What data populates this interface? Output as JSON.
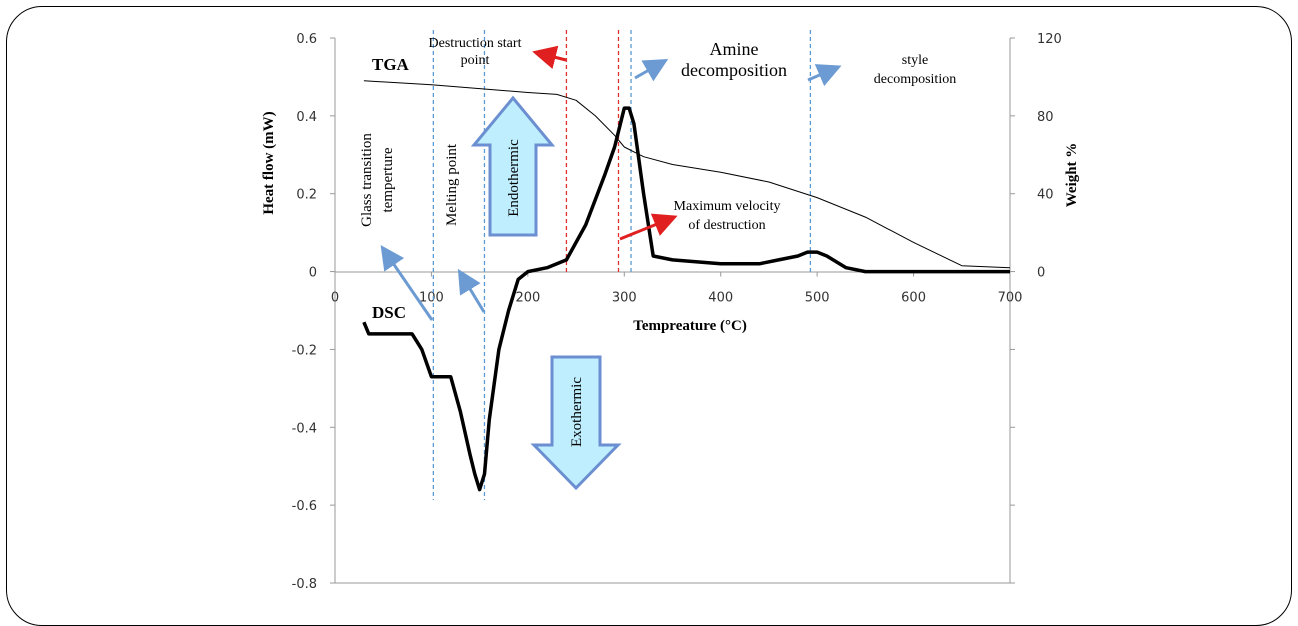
{
  "chart_data": {
    "type": "line",
    "x_ticks": [
      "0",
      "100",
      "200",
      "300",
      "400",
      "500",
      "600",
      "700"
    ],
    "xlim": [
      0,
      700
    ],
    "ylim_left": [
      -0.8,
      0.6
    ],
    "ylim_right": [
      0,
      120
    ],
    "y_ticks_left": [
      "0.6",
      "0.4",
      "0.2",
      "0",
      "-0.2",
      "-0.4",
      "-0.6",
      "-0.8"
    ],
    "y_ticks_right": [
      "120",
      "80",
      "40",
      "0"
    ],
    "xlabel": "Tempreature  (°C)",
    "ylabel_left": "Heat flow  (mW)",
    "ylabel_right": "Weight %",
    "grid": false,
    "series": [
      {
        "name": "TGA",
        "axis": "right",
        "x": [
          30,
          100,
          150,
          200,
          230,
          250,
          270,
          290,
          300,
          320,
          350,
          400,
          450,
          500,
          550,
          600,
          650,
          700
        ],
        "y": [
          98,
          96,
          94,
          92,
          91,
          88,
          80,
          70,
          64,
          59,
          55,
          51,
          46,
          38,
          28,
          15,
          3,
          2
        ]
      },
      {
        "name": "DSC",
        "axis": "left",
        "x": [
          30,
          35,
          60,
          80,
          90,
          100,
          110,
          120,
          130,
          140,
          145,
          150,
          155,
          160,
          170,
          180,
          190,
          200,
          220,
          240,
          260,
          280,
          290,
          300,
          305,
          310,
          320,
          330,
          350,
          400,
          440,
          460,
          480,
          490,
          500,
          510,
          530,
          550,
          600,
          700
        ],
        "y": [
          -0.13,
          -0.16,
          -0.16,
          -0.16,
          -0.2,
          -0.27,
          -0.27,
          -0.27,
          -0.36,
          -0.47,
          -0.52,
          -0.56,
          -0.52,
          -0.38,
          -0.2,
          -0.1,
          -0.02,
          0.0,
          0.01,
          0.03,
          0.12,
          0.25,
          0.32,
          0.42,
          0.42,
          0.38,
          0.2,
          0.04,
          0.03,
          0.02,
          0.02,
          0.03,
          0.04,
          0.05,
          0.05,
          0.04,
          0.01,
          0.0,
          0.0,
          0.0
        ]
      }
    ],
    "vlines": [
      {
        "x": 102,
        "color": "#5b9bd5"
      },
      {
        "x": 155,
        "color": "#5b9bd5"
      },
      {
        "x": 240,
        "color": "#e03030"
      },
      {
        "x": 294,
        "color": "#e03030"
      },
      {
        "x": 307,
        "color": "#5b9bd5"
      },
      {
        "x": 493,
        "color": "#5b9bd5"
      }
    ]
  },
  "labels": {
    "tga": "TGA",
    "dsc": "DSC",
    "destruction_start_1": "Destruction start",
    "destruction_start_2": "point",
    "amine_1": "Amine",
    "amine_2": "decomposition",
    "style_1": "style",
    "style_2": "decomposition",
    "max_vel_1": "Maximum velocity",
    "max_vel_2": "of destruction",
    "glass_1": "Glass transition",
    "glass_2": "temperture",
    "melting": "Melting point",
    "endothermic": "Endothermic",
    "exothermic": "Exothermic"
  },
  "colors": {
    "arrow_blue": "#6b9bd2",
    "arrow_red": "#e02020",
    "big_arrow_fill": "#bfefff",
    "big_arrow_stroke": "#6b8fd0"
  }
}
